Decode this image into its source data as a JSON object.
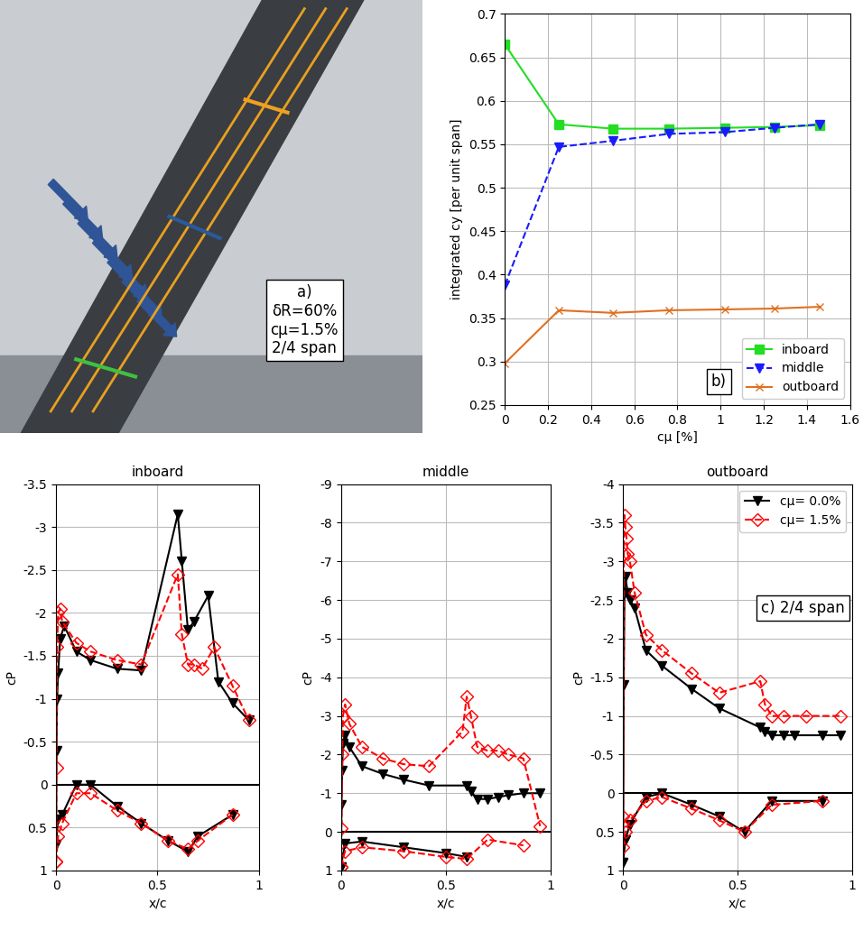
{
  "chart_data": [
    {
      "type": "photo",
      "annotations": [
        "a)",
        "δR=60%",
        "cμ=1.5%",
        "2/4 span"
      ]
    },
    {
      "type": "line",
      "xlabel": "cμ [%]",
      "ylabel": "integrated cy [per unit span]",
      "annotations": [
        "b)"
      ],
      "x": [
        0,
        0.25,
        0.5,
        0.76,
        1.02,
        1.25,
        1.46
      ],
      "xlim": [
        0,
        1.6
      ],
      "xticks": [
        0,
        0.2,
        0.4,
        0.6,
        0.8,
        1,
        1.2,
        1.4,
        1.6
      ],
      "ylim": [
        0.25,
        0.7
      ],
      "yticks": [
        0.25,
        0.3,
        0.35,
        0.4,
        0.45,
        0.5,
        0.55,
        0.6,
        0.65,
        0.7
      ],
      "grid": true,
      "legend": "lower right",
      "series": [
        {
          "name": "inboard",
          "color": "#22dd22",
          "marker": "square",
          "line_style": "solid",
          "values": [
            0.665,
            0.573,
            0.568,
            0.568,
            0.569,
            0.57,
            0.572
          ]
        },
        {
          "name": "middle",
          "color": "#1a1aff",
          "marker": "triangle_down",
          "line_style": "dashed",
          "values": [
            0.388,
            0.547,
            0.554,
            0.562,
            0.564,
            0.569,
            0.573
          ]
        },
        {
          "name": "outboard",
          "color": "#e07020",
          "marker": "x",
          "line_style": "solid",
          "values": [
            0.298,
            0.359,
            0.356,
            0.359,
            0.36,
            0.361,
            0.363
          ]
        }
      ]
    },
    {
      "type": "line",
      "title": "inboard",
      "xlabel": "x/c",
      "ylabel": "cP",
      "xlim": [
        0,
        1
      ],
      "xticks": [
        0,
        0.5,
        1
      ],
      "ylim": [
        1,
        -3.5
      ],
      "yticks": [
        -3.5,
        -3,
        -2.5,
        -2,
        -1.5,
        -1,
        -0.5,
        0,
        0.5,
        1
      ],
      "grid": true,
      "hline": 0,
      "series": [
        {
          "color": "#000000",
          "marker": "triangle_down",
          "line_style": "solid",
          "upper": {
            "x": [
              0,
              0.002,
              0.005,
              0.01,
              0.02,
              0.04,
              0.1,
              0.17,
              0.3,
              0.42,
              0.6,
              0.62,
              0.65,
              0.68,
              0.75,
              0.8,
              0.87,
              0.95
            ],
            "values": [
              0.7,
              -0.4,
              -1.0,
              -1.3,
              -1.7,
              -1.85,
              -1.55,
              -1.45,
              -1.35,
              -1.33,
              -3.15,
              -2.6,
              -1.8,
              -1.9,
              -2.2,
              -1.2,
              -0.95,
              -0.75
            ]
          },
          "lower": {
            "x": [
              0,
              0.01,
              0.03,
              0.1,
              0.17,
              0.3,
              0.42,
              0.55,
              0.65,
              0.7,
              0.87
            ],
            "values": [
              0.7,
              0.4,
              0.35,
              0.0,
              0.0,
              0.25,
              0.45,
              0.65,
              0.78,
              0.6,
              0.35
            ]
          }
        },
        {
          "color": "#ff0000",
          "marker": "open_diamond",
          "line_style": "dashed",
          "upper": {
            "x": [
              0,
              0.002,
              0.005,
              0.01,
              0.02,
              0.03,
              0.1,
              0.17,
              0.3,
              0.42,
              0.6,
              0.62,
              0.65,
              0.68,
              0.72,
              0.78,
              0.87,
              0.95
            ],
            "values": [
              0.9,
              -0.2,
              -1.6,
              -2.0,
              -2.05,
              -1.9,
              -1.65,
              -1.55,
              -1.45,
              -1.4,
              -2.45,
              -1.75,
              -1.4,
              -1.4,
              -1.35,
              -1.6,
              -1.15,
              -0.75
            ]
          },
          "lower": {
            "x": [
              0,
              0.01,
              0.03,
              0.1,
              0.17,
              0.3,
              0.42,
              0.55,
              0.65,
              0.7,
              0.87
            ],
            "values": [
              0.9,
              0.6,
              0.45,
              0.1,
              0.1,
              0.3,
              0.45,
              0.65,
              0.75,
              0.65,
              0.35
            ]
          }
        }
      ]
    },
    {
      "type": "line",
      "title": "middle",
      "xlabel": "x/c",
      "ylabel": "cP",
      "xlim": [
        0,
        1
      ],
      "xticks": [
        0,
        0.5,
        1
      ],
      "ylim": [
        1,
        -9
      ],
      "yticks": [
        -9,
        -8,
        -7,
        -6,
        -5,
        -4,
        -3,
        -2,
        -1,
        0,
        1
      ],
      "grid": true,
      "hline": 0,
      "series": [
        {
          "color": "#000000",
          "marker": "triangle_down",
          "line_style": "solid",
          "upper": {
            "x": [
              0,
              0.003,
              0.006,
              0.01,
              0.02,
              0.04,
              0.1,
              0.2,
              0.3,
              0.42,
              0.6,
              0.62,
              0.65,
              0.7,
              0.75,
              0.8,
              0.87,
              0.95
            ],
            "values": [
              0.9,
              -0.7,
              -1.6,
              -2.3,
              -2.5,
              -2.2,
              -1.7,
              -1.5,
              -1.35,
              -1.2,
              -1.2,
              -1.05,
              -0.85,
              -0.85,
              -0.9,
              -0.95,
              -1.0,
              -1.0
            ]
          },
          "lower": {
            "x": [
              0,
              0.02,
              0.1,
              0.3,
              0.5,
              0.6
            ],
            "values": [
              0.9,
              0.3,
              0.25,
              0.4,
              0.55,
              0.65
            ]
          }
        },
        {
          "color": "#ff0000",
          "marker": "open_diamond",
          "line_style": "dashed",
          "upper": {
            "x": [
              0,
              0.003,
              0.006,
              0.01,
              0.02,
              0.04,
              0.1,
              0.2,
              0.3,
              0.42,
              0.58,
              0.6,
              0.62,
              0.65,
              0.7,
              0.75,
              0.8,
              0.87,
              0.95
            ],
            "values": [
              0.9,
              -0.1,
              -2.0,
              -3.0,
              -3.3,
              -2.8,
              -2.2,
              -1.9,
              -1.75,
              -1.7,
              -2.6,
              -3.5,
              -3.0,
              -2.2,
              -2.1,
              -2.1,
              -2.0,
              -1.9,
              -0.15
            ]
          },
          "lower": {
            "x": [
              0,
              0.02,
              0.1,
              0.3,
              0.5,
              0.6,
              0.7,
              0.87
            ],
            "values": [
              0.9,
              0.5,
              0.4,
              0.5,
              0.65,
              0.7,
              0.2,
              0.35
            ]
          }
        }
      ]
    },
    {
      "type": "line",
      "title": "outboard",
      "xlabel": "x/c",
      "ylabel": "cP",
      "annotations": [
        "c) 2/4 span"
      ],
      "xlim": [
        0,
        1
      ],
      "xticks": [
        0,
        0.5,
        1
      ],
      "ylim": [
        1,
        -4
      ],
      "yticks": [
        -4,
        -3.5,
        -3,
        -2.5,
        -2,
        -1.5,
        -1,
        -0.5,
        0,
        0.5,
        1
      ],
      "grid": true,
      "hline": 0,
      "legend": "upper right",
      "series": [
        {
          "name": "cμ= 0.0%",
          "color": "#000000",
          "marker": "triangle_down",
          "line_style": "solid",
          "upper": {
            "x": [
              0,
              0.003,
              0.006,
              0.01,
              0.02,
              0.03,
              0.05,
              0.1,
              0.17,
              0.3,
              0.42,
              0.6,
              0.62,
              0.65,
              0.7,
              0.75,
              0.87,
              0.95
            ],
            "values": [
              0.9,
              -1.4,
              -2.6,
              -2.8,
              -2.6,
              -2.5,
              -2.4,
              -1.85,
              -1.65,
              -1.35,
              -1.1,
              -0.85,
              -0.8,
              -0.75,
              -0.75,
              -0.75,
              -0.75,
              -0.75
            ]
          },
          "lower": {
            "x": [
              0,
              0.01,
              0.03,
              0.1,
              0.17,
              0.3,
              0.42,
              0.53,
              0.65,
              0.87
            ],
            "values": [
              0.9,
              0.6,
              0.4,
              0.05,
              0.0,
              0.15,
              0.3,
              0.5,
              0.1,
              0.1
            ]
          }
        },
        {
          "name": "cμ= 1.5%",
          "color": "#ff0000",
          "marker": "open_diamond",
          "line_style": "dashed",
          "upper": {
            "x": [
              0,
              0.003,
              0.006,
              0.01,
              0.015,
              0.02,
              0.03,
              0.05,
              0.1,
              0.17,
              0.3,
              0.42,
              0.6,
              0.62,
              0.65,
              0.7,
              0.8,
              0.95
            ],
            "values": [
              0.3,
              -3.1,
              -3.6,
              -3.45,
              -3.3,
              -3.1,
              -3.0,
              -2.6,
              -2.05,
              -1.85,
              -1.55,
              -1.3,
              -1.45,
              -1.15,
              -1.0,
              -1.0,
              -1.0,
              -1.0
            ]
          },
          "lower": {
            "x": [
              0,
              0.01,
              0.03,
              0.1,
              0.17,
              0.3,
              0.42,
              0.53,
              0.65,
              0.87
            ],
            "values": [
              0.7,
              0.5,
              0.35,
              0.1,
              0.05,
              0.2,
              0.35,
              0.5,
              0.15,
              0.1
            ]
          }
        }
      ]
    }
  ]
}
